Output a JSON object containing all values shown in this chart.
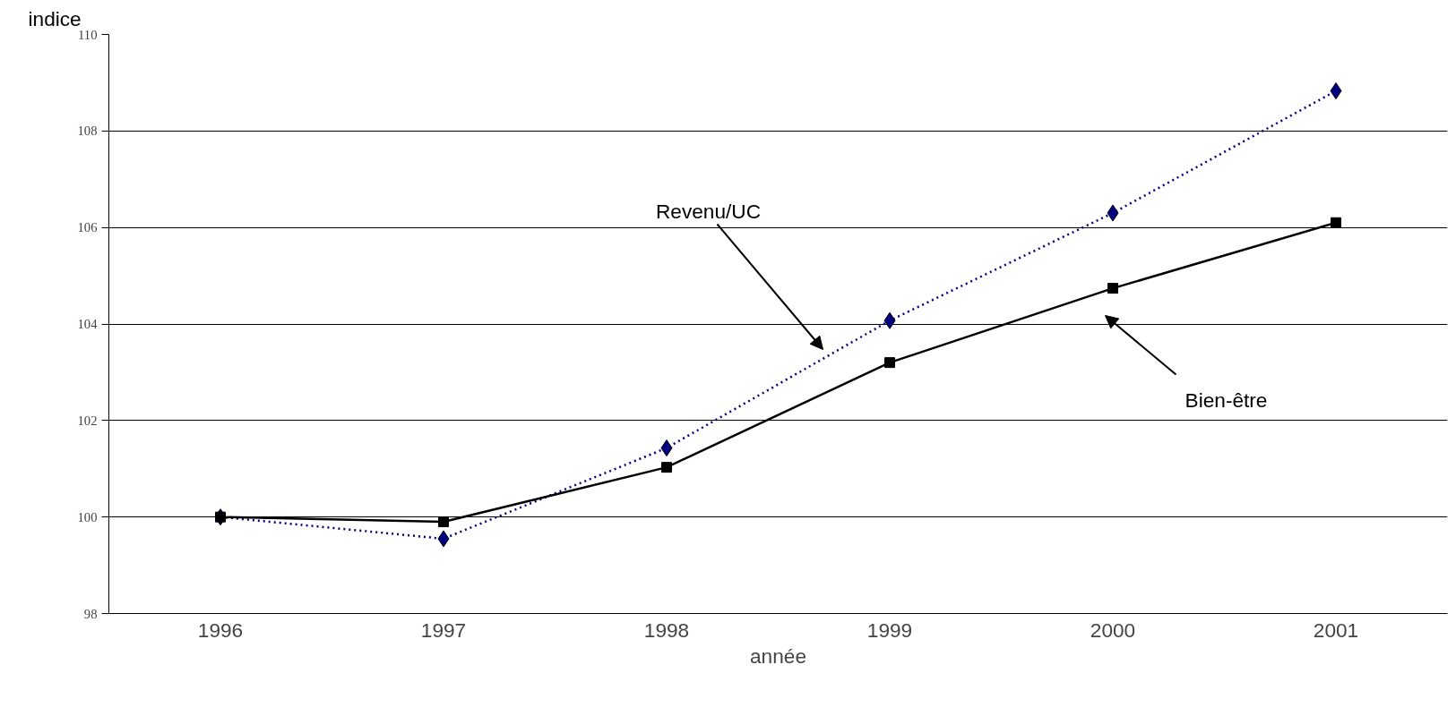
{
  "chart_data": {
    "type": "line",
    "categories": [
      "1996",
      "1997",
      "1998",
      "1999",
      "2000",
      "2001"
    ],
    "xlabel": "année",
    "ylabel": "indice",
    "ylim": [
      98,
      110
    ],
    "yticks": [
      98,
      100,
      102,
      104,
      106,
      108,
      110
    ],
    "grid": "y",
    "series": [
      {
        "color": "#000080",
        "marker": "diamond",
        "line_style": "dotted",
        "values": [
          100.0,
          99.55,
          101.43,
          104.07,
          106.3,
          108.83
        ]
      },
      {
        "color": "#000000",
        "marker": "square",
        "line_style": "solid",
        "values": [
          100.0,
          99.9,
          101.03,
          103.2,
          104.74,
          106.1
        ]
      }
    ],
    "annotations": [
      "Revenu/UC",
      "Bien-être"
    ]
  }
}
